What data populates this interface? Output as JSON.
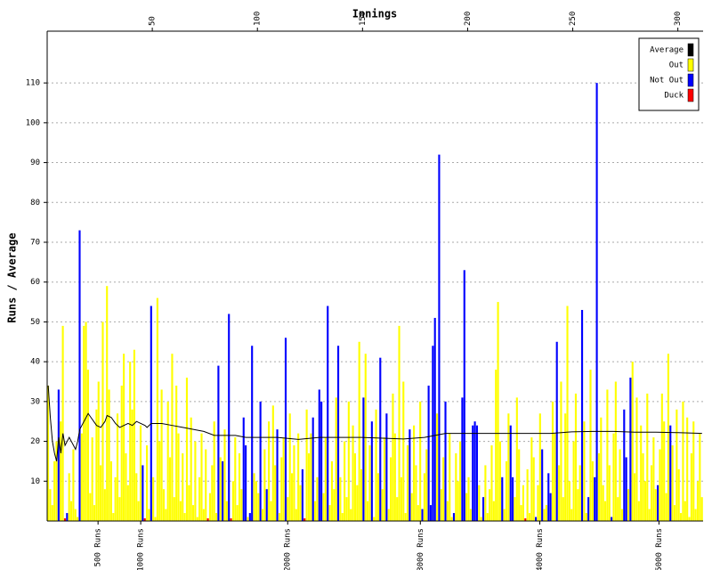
{
  "chart_data": {
    "type": "bar",
    "x_label": "Innings",
    "y_label": "Runs / Average",
    "xlim": [
      0,
      312
    ],
    "ylim": [
      0,
      123
    ],
    "xticks": [
      50,
      100,
      150,
      200,
      250,
      300
    ],
    "yticks": [
      10,
      20,
      30,
      40,
      50,
      60,
      70,
      80,
      90,
      100,
      110
    ],
    "grid": true,
    "legend": "upper right",
    "series": [
      {
        "name": "Average",
        "color": "#000000"
      },
      {
        "name": "Out",
        "color": "#ffff00"
      },
      {
        "name": "Not Out",
        "color": "#0000ff"
      },
      {
        "name": "Duck",
        "color": "#ff0000"
      }
    ],
    "innings": {
      "values": [
        34,
        8,
        4,
        15,
        20,
        33,
        25,
        49,
        0,
        2,
        12,
        5,
        18,
        3,
        1,
        73,
        22,
        49,
        50,
        38,
        7,
        21,
        4,
        28,
        35,
        14,
        50,
        8,
        59,
        33,
        15,
        2,
        11,
        27,
        6,
        34,
        42,
        17,
        9,
        40,
        28,
        43,
        12,
        5,
        24,
        14,
        0,
        19,
        3,
        54,
        11,
        1,
        56,
        20,
        33,
        8,
        3,
        30,
        16,
        42,
        6,
        34,
        22,
        5,
        17,
        2,
        36,
        9,
        26,
        4,
        20,
        1,
        11,
        22,
        3,
        18,
        0,
        7,
        14,
        25,
        2,
        39,
        16,
        15,
        23,
        5,
        52,
        0,
        10,
        21,
        4,
        17,
        8,
        26,
        19,
        1,
        2,
        44,
        12,
        10,
        7,
        30,
        3,
        18,
        8,
        25,
        5,
        29,
        14,
        23,
        2,
        16,
        21,
        46,
        6,
        27,
        12,
        19,
        3,
        22,
        9,
        13,
        0,
        28,
        17,
        22,
        26,
        5,
        11,
        33,
        30,
        7,
        21,
        54,
        4,
        15,
        8,
        31,
        44,
        11,
        2,
        20,
        6,
        30,
        3,
        24,
        17,
        9,
        45,
        13,
        31,
        42,
        5,
        19,
        25,
        1,
        28,
        12,
        41,
        8,
        21,
        27,
        3,
        16,
        32,
        22,
        6,
        49,
        11,
        35,
        2,
        19,
        23,
        7,
        24,
        14,
        4,
        30,
        3,
        12,
        18,
        34,
        4,
        44,
        51,
        27,
        92,
        8,
        16,
        30,
        5,
        22,
        1,
        2,
        17,
        10,
        20,
        31,
        63,
        7,
        11,
        3,
        24,
        25,
        24,
        9,
        1,
        6,
        14,
        2,
        8,
        19,
        5,
        38,
        55,
        20,
        11,
        3,
        15,
        27,
        24,
        11,
        6,
        31,
        18,
        4,
        9,
        0,
        13,
        2,
        21,
        16,
        1,
        9,
        27,
        18,
        3,
        4,
        12,
        7,
        30,
        22,
        45,
        14,
        35,
        6,
        27,
        54,
        10,
        3,
        20,
        32,
        8,
        14,
        53,
        25,
        2,
        6,
        38,
        15,
        11,
        110,
        17,
        26,
        9,
        5,
        33,
        14,
        1,
        22,
        35,
        6,
        18,
        3,
        28,
        16,
        8,
        36,
        40,
        12,
        31,
        5,
        24,
        17,
        10,
        32,
        3,
        14,
        21,
        8,
        9,
        18,
        32,
        25,
        7,
        42,
        24,
        19,
        4,
        28,
        13,
        2,
        30,
        5,
        26,
        1,
        17,
        25,
        3,
        10,
        22,
        6
      ],
      "kinds": [
        1,
        1,
        1,
        1,
        1,
        2,
        1,
        1,
        3,
        2,
        1,
        1,
        1,
        1,
        1,
        2,
        1,
        1,
        1,
        1,
        1,
        1,
        1,
        1,
        1,
        1,
        1,
        1,
        1,
        1,
        1,
        1,
        1,
        1,
        1,
        1,
        1,
        1,
        1,
        1,
        1,
        1,
        1,
        1,
        1,
        2,
        3,
        1,
        1,
        2,
        1,
        1,
        1,
        1,
        1,
        1,
        1,
        1,
        1,
        1,
        1,
        1,
        1,
        1,
        1,
        1,
        1,
        1,
        1,
        1,
        1,
        1,
        1,
        1,
        1,
        1,
        3,
        1,
        1,
        1,
        1,
        2,
        1,
        2,
        1,
        1,
        2,
        3,
        1,
        1,
        1,
        1,
        1,
        2,
        2,
        1,
        2,
        2,
        1,
        1,
        1,
        2,
        1,
        1,
        2,
        1,
        1,
        1,
        1,
        2,
        1,
        1,
        1,
        2,
        1,
        1,
        1,
        1,
        1,
        1,
        1,
        2,
        3,
        1,
        1,
        1,
        2,
        1,
        1,
        2,
        2,
        1,
        1,
        2,
        1,
        1,
        1,
        1,
        2,
        1,
        1,
        1,
        1,
        1,
        1,
        1,
        1,
        1,
        1,
        1,
        2,
        1,
        1,
        1,
        2,
        1,
        1,
        1,
        2,
        1,
        1,
        2,
        1,
        1,
        1,
        1,
        1,
        1,
        1,
        1,
        1,
        1,
        2,
        1,
        1,
        1,
        1,
        1,
        2,
        1,
        1,
        2,
        2,
        2,
        2,
        1,
        2,
        1,
        1,
        2,
        1,
        1,
        1,
        2,
        1,
        1,
        1,
        2,
        2,
        1,
        1,
        1,
        2,
        2,
        2,
        1,
        1,
        2,
        1,
        1,
        1,
        1,
        1,
        1,
        1,
        1,
        2,
        1,
        1,
        1,
        2,
        2,
        1,
        1,
        1,
        1,
        1,
        3,
        1,
        1,
        1,
        1,
        2,
        1,
        1,
        2,
        1,
        1,
        2,
        2,
        1,
        1,
        2,
        1,
        1,
        1,
        1,
        1,
        1,
        1,
        1,
        1,
        1,
        1,
        2,
        1,
        1,
        2,
        1,
        1,
        2,
        2,
        1,
        1,
        1,
        1,
        1,
        1,
        2,
        1,
        1,
        1,
        1,
        1,
        2,
        2,
        1,
        2,
        1,
        1,
        1,
        1,
        1,
        1,
        1,
        1,
        1,
        1,
        1,
        1,
        2,
        1,
        1,
        1,
        1,
        1,
        2,
        1,
        1,
        1,
        1,
        1,
        1,
        1,
        1,
        1,
        1,
        1,
        1,
        1,
        1,
        1
      ]
    },
    "average": {
      "x": [
        1,
        2,
        3,
        4,
        5,
        6,
        7,
        8,
        9,
        10,
        11,
        12,
        13,
        14,
        15,
        16,
        17,
        18,
        20,
        22,
        24,
        26,
        28,
        29,
        31,
        33,
        35,
        37,
        39,
        41,
        43,
        45,
        47,
        48,
        50,
        55,
        60,
        65,
        70,
        75,
        80,
        85,
        90,
        95,
        100,
        110,
        120,
        130,
        140,
        150,
        160,
        170,
        180,
        185,
        190,
        200,
        210,
        220,
        230,
        240,
        250,
        260,
        270,
        280,
        290,
        300,
        312
      ],
      "values": [
        34,
        26,
        20,
        17,
        15,
        21,
        17,
        22,
        19,
        20,
        21,
        20,
        19,
        18,
        20,
        23,
        24,
        25,
        27,
        25.5,
        24,
        23.5,
        25,
        26.5,
        26,
        24.5,
        23.5,
        24,
        24.5,
        24,
        25,
        24.5,
        24,
        23.5,
        24.5,
        24.5,
        24,
        23.5,
        23,
        22.5,
        21.5,
        21.5,
        21.5,
        21,
        21,
        21,
        20.5,
        21,
        21,
        21,
        20.8,
        20.6,
        21,
        21.5,
        22,
        22,
        22,
        22,
        22,
        22,
        22.4,
        22.5,
        22.5,
        22.3,
        22.3,
        22.2,
        22
      ]
    },
    "runs_ticks": [
      {
        "value": 500,
        "label": "500 Runs",
        "innings": 24.2
      },
      {
        "value": 1000,
        "label": "1000 Runs",
        "innings": 44.5
      },
      {
        "value": 2000,
        "label": "2000 Runs",
        "innings": 114.4
      },
      {
        "value": 3000,
        "label": "3000 Runs",
        "innings": 177.5
      },
      {
        "value": 4000,
        "label": "4000 Runs",
        "innings": 234.3
      },
      {
        "value": 5000,
        "label": "5000 Runs",
        "innings": 291
      }
    ]
  }
}
